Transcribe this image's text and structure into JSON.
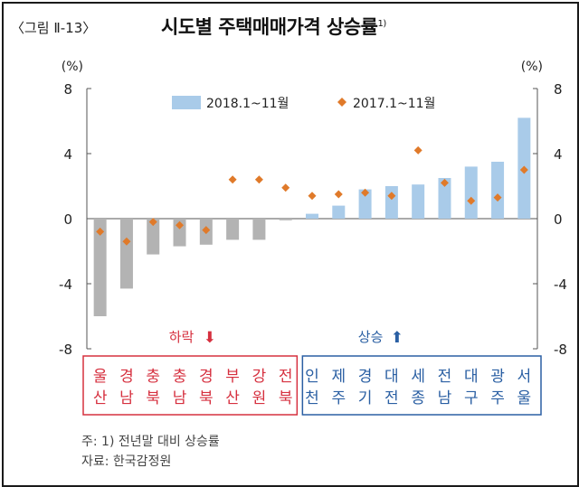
{
  "figure_label": "〈그림 Ⅱ-13〉",
  "title": "시도별 주택매매가격 상승률",
  "title_sup": "1)",
  "unit_left": "(%)",
  "unit_right": "(%)",
  "legend": {
    "bar": "2018.1~11월",
    "dot": "2017.1~11월"
  },
  "group_down": {
    "label": "하락",
    "arrow": "⬇",
    "color": "#d6303f"
  },
  "group_up": {
    "label": "상승",
    "arrow": "⬆",
    "color": "#2a5fa3"
  },
  "notes": {
    "footnote": "주: 1) 전년말 대비 상승률",
    "source": "자료: 한국감정원"
  },
  "colors": {
    "neg_bar": "#b3b3b3",
    "pos_bar": "#a9cbe9",
    "dot": "#e07a2a"
  },
  "chart_data": {
    "type": "bar",
    "categories": [
      "울산",
      "경남",
      "충북",
      "충남",
      "경북",
      "부산",
      "강원",
      "전북",
      "인천",
      "제주",
      "경기",
      "대전",
      "세종",
      "전남",
      "대구",
      "광주",
      "서울"
    ],
    "series": [
      {
        "name": "2018.1~11월",
        "type": "bar",
        "values": [
          -6.0,
          -4.3,
          -2.2,
          -1.7,
          -1.6,
          -1.3,
          -1.3,
          -0.1,
          0.3,
          0.8,
          1.8,
          2.0,
          2.1,
          2.5,
          3.2,
          3.5,
          6.2
        ]
      },
      {
        "name": "2017.1~11월",
        "type": "scatter",
        "values": [
          -0.8,
          -1.4,
          -0.2,
          -0.4,
          -0.7,
          2.4,
          2.4,
          1.9,
          1.4,
          1.5,
          1.6,
          1.4,
          4.2,
          2.2,
          1.1,
          1.3,
          3.0
        ]
      }
    ],
    "ylim": [
      -8,
      8
    ],
    "yticks": [
      -8,
      -4,
      0,
      4,
      8
    ],
    "ytick_labels": [
      "-8",
      "-4",
      "0",
      "4",
      "8"
    ],
    "grid": false,
    "legend_position": "top"
  }
}
